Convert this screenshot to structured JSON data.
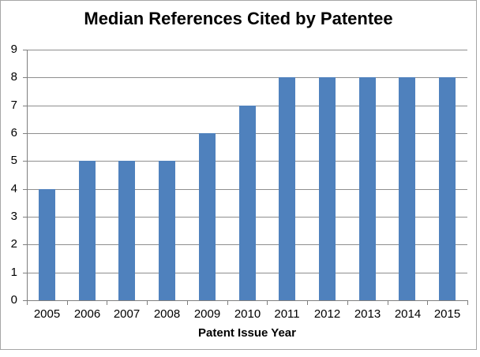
{
  "chart_data": {
    "type": "bar",
    "title": "Median References Cited by Patentee",
    "xlabel": "Patent Issue Year",
    "ylabel": "",
    "categories": [
      "2005",
      "2006",
      "2007",
      "2008",
      "2009",
      "2010",
      "2011",
      "2012",
      "2013",
      "2014",
      "2015"
    ],
    "values": [
      4,
      5,
      5,
      5,
      6,
      7,
      8,
      8,
      8,
      8,
      8
    ],
    "ylim": [
      0,
      9
    ],
    "yticks": [
      "0",
      "1",
      "2",
      "3",
      "4",
      "5",
      "6",
      "7",
      "8",
      "9"
    ],
    "grid": true,
    "legend": "none",
    "colors": {
      "bar": "#4f81bd",
      "gridline": "#8e8e8e",
      "axis": "#7f7f7f",
      "text": "#000000",
      "frame_border": "#a6a6a6",
      "background": "#ffffff"
    }
  }
}
